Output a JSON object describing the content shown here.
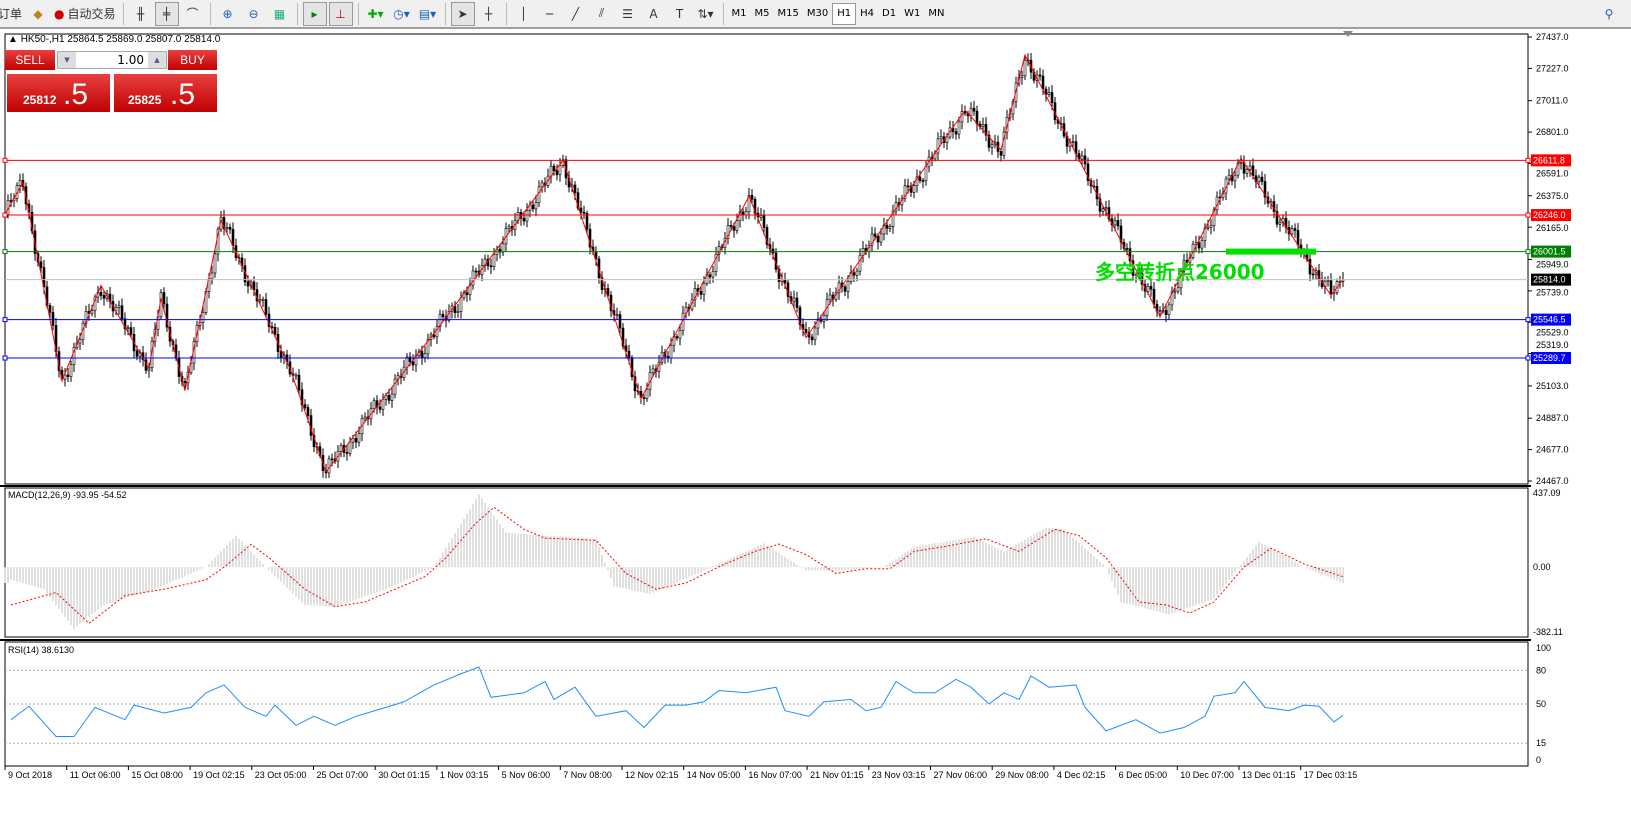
{
  "toolbar": {
    "order_label": "订单",
    "autotrade_label": "自动交易",
    "timeframes": [
      "M1",
      "M5",
      "M15",
      "M30",
      "H1",
      "H4",
      "D1",
      "W1",
      "MN"
    ],
    "active_timeframe": "H1",
    "icons": [
      "bar-chart-icon",
      "candlestick-icon",
      "line-chart-icon",
      "zoom-in-icon",
      "zoom-out-icon",
      "tile-windows-icon",
      "autoscroll-icon",
      "chart-shift-icon",
      "new-indicator-icon",
      "periods-icon",
      "templates-icon",
      "cursor-icon",
      "crosshair-icon",
      "vertical-line-icon",
      "horizontal-line-icon",
      "trendline-icon",
      "equidistant-channel-icon",
      "fibonacci-icon",
      "text-icon",
      "text-label-icon",
      "arrows-icon"
    ]
  },
  "symbol_info": "HK50-,H1  25864.5 25869.0 25807.0 25814.0",
  "trade_panel": {
    "sell_label": "SELL",
    "buy_label": "BUY",
    "lot": "1.00",
    "sell_big": "25812",
    "sell_small": ".5",
    "buy_big": "25825",
    "buy_small": ".5"
  },
  "annotation": "多空转折点26000",
  "colors": {
    "up": "#000000",
    "zigzag": "#ff0000",
    "macd_hist": "#c0c0c0",
    "macd_signal": "#ff0000",
    "rsi": "#1e90ff",
    "annotation": "#00e000"
  },
  "chart_data": [
    {
      "type": "candlestick",
      "symbol": "HK50-",
      "timeframe": "H1",
      "ylim": [
        24467,
        27437
      ],
      "y_ticks": [
        "27437.0",
        "27227.0",
        "27011.0",
        "26801.0",
        "26591.0",
        "26375.0",
        "26165.0",
        "25949.0",
        "25739.0",
        "25529.0",
        "25319.0",
        "25103.0",
        "24887.0",
        "24677.0",
        "24467.0"
      ],
      "x_labels": [
        "9 Oct 2018",
        "11 Oct 06:00",
        "15 Oct 08:00",
        "19 Oct 02:15",
        "23 Oct 05:00",
        "25 Oct 07:00",
        "30 Oct 01:15",
        "1 Nov 03:15",
        "5 Nov 06:00",
        "7 Nov 08:00",
        "12 Nov 02:15",
        "14 Nov 05:00",
        "16 Nov 07:00",
        "21 Nov 01:15",
        "23 Nov 03:15",
        "27 Nov 06:00",
        "29 Nov 08:00",
        "4 Dec 02:15",
        "6 Dec 05:00",
        "10 Dec 07:00",
        "13 Dec 01:15",
        "17 Dec 03:15"
      ],
      "last_price": "25814.0",
      "hlines": [
        {
          "price": "26611.8",
          "color": "#ff0000"
        },
        {
          "price": "26246.0",
          "color": "#ff0000"
        },
        {
          "price": "26001.5",
          "color": "#008000"
        },
        {
          "price": "25546.5",
          "color": "#0000ff"
        },
        {
          "price": "25289.7",
          "color": "#0000ff"
        }
      ],
      "zigzag": [
        [
          0,
          26250
        ],
        [
          6,
          26465
        ],
        [
          19,
          25138
        ],
        [
          32,
          25775
        ],
        [
          48,
          25219
        ],
        [
          52,
          25688
        ],
        [
          60,
          25071
        ],
        [
          72,
          26210
        ],
        [
          95,
          25219
        ],
        [
          107,
          24528
        ],
        [
          145,
          25507
        ],
        [
          186,
          26613
        ],
        [
          212,
          25018
        ],
        [
          248,
          26371
        ],
        [
          267,
          25426
        ],
        [
          320,
          26948
        ],
        [
          332,
          26680
        ],
        [
          340,
          27316
        ],
        [
          365,
          26345
        ],
        [
          385,
          25567
        ],
        [
          412,
          26626
        ],
        [
          442,
          25708
        ],
        [
          446,
          25814
        ]
      ],
      "highlight_level": 26001.5
    },
    {
      "type": "bar+line",
      "name": "MACD(12,26,9) -93.95 -54.52",
      "ylim": [
        -382.11,
        437.09
      ],
      "y_ticks": [
        "437.09",
        "0.00",
        "-382.11"
      ],
      "macd": [
        [
          2,
          -74
        ],
        [
          13,
          -130
        ],
        [
          23,
          -363
        ],
        [
          33,
          -223
        ],
        [
          50,
          -130
        ],
        [
          67,
          0
        ],
        [
          77,
          186
        ],
        [
          87,
          0
        ],
        [
          100,
          -223
        ],
        [
          110,
          -233
        ],
        [
          127,
          -130
        ],
        [
          143,
          0
        ],
        [
          158,
          428
        ],
        [
          167,
          205
        ],
        [
          180,
          186
        ],
        [
          197,
          167
        ],
        [
          203,
          -112
        ],
        [
          215,
          -158
        ],
        [
          233,
          -19
        ],
        [
          253,
          140
        ],
        [
          267,
          -19
        ],
        [
          277,
          -19
        ],
        [
          293,
          0
        ],
        [
          303,
          121
        ],
        [
          323,
          177
        ],
        [
          333,
          93
        ],
        [
          347,
          232
        ],
        [
          353,
          223
        ],
        [
          367,
          0
        ],
        [
          372,
          -205
        ],
        [
          388,
          -279
        ],
        [
          403,
          -186
        ],
        [
          418,
          149
        ],
        [
          433,
          0
        ],
        [
          446,
          -93
        ]
      ],
      "signal": [
        [
          2,
          -223
        ],
        [
          17,
          -149
        ],
        [
          28,
          -331
        ],
        [
          40,
          -167
        ],
        [
          53,
          -130
        ],
        [
          67,
          -74
        ],
        [
          73,
          0
        ],
        [
          82,
          134
        ],
        [
          88,
          56
        ],
        [
          100,
          -130
        ],
        [
          110,
          -233
        ],
        [
          120,
          -205
        ],
        [
          130,
          -130
        ],
        [
          140,
          -56
        ],
        [
          147,
          56
        ],
        [
          157,
          260
        ],
        [
          163,
          353
        ],
        [
          173,
          223
        ],
        [
          180,
          171
        ],
        [
          197,
          158
        ],
        [
          207,
          -37
        ],
        [
          217,
          -130
        ],
        [
          227,
          -93
        ],
        [
          240,
          19
        ],
        [
          250,
          93
        ],
        [
          258,
          136
        ],
        [
          267,
          74
        ],
        [
          277,
          -37
        ],
        [
          287,
          -9
        ],
        [
          295,
          -9
        ],
        [
          303,
          93
        ],
        [
          313,
          121
        ],
        [
          327,
          167
        ],
        [
          338,
          93
        ],
        [
          350,
          223
        ],
        [
          358,
          186
        ],
        [
          367,
          56
        ],
        [
          378,
          -205
        ],
        [
          387,
          -223
        ],
        [
          395,
          -270
        ],
        [
          403,
          -205
        ],
        [
          413,
          0
        ],
        [
          422,
          112
        ],
        [
          433,
          19
        ],
        [
          446,
          -56
        ]
      ]
    },
    {
      "type": "line",
      "name": "RSI(14) 38.6130",
      "ylim": [
        0,
        100
      ],
      "y_ticks": [
        "100",
        "80",
        "50",
        "15",
        "0"
      ],
      "levels": [
        80,
        50,
        15
      ],
      "values": [
        [
          2,
          36
        ],
        [
          8,
          48
        ],
        [
          17,
          21
        ],
        [
          23,
          21
        ],
        [
          30,
          47
        ],
        [
          40,
          36
        ],
        [
          43,
          49
        ],
        [
          53,
          42
        ],
        [
          62,
          47
        ],
        [
          67,
          60
        ],
        [
          73,
          67
        ],
        [
          80,
          47
        ],
        [
          87,
          39
        ],
        [
          90,
          49
        ],
        [
          97,
          31
        ],
        [
          103,
          39
        ],
        [
          110,
          31
        ],
        [
          117,
          39
        ],
        [
          127,
          47
        ],
        [
          133,
          52
        ],
        [
          143,
          67
        ],
        [
          152,
          77
        ],
        [
          158,
          83
        ],
        [
          162,
          56
        ],
        [
          173,
          60
        ],
        [
          180,
          70
        ],
        [
          183,
          54
        ],
        [
          190,
          65
        ],
        [
          197,
          39
        ],
        [
          207,
          44
        ],
        [
          213,
          29
        ],
        [
          220,
          49
        ],
        [
          227,
          49
        ],
        [
          233,
          52
        ],
        [
          238,
          62
        ],
        [
          247,
          60
        ],
        [
          257,
          65
        ],
        [
          260,
          44
        ],
        [
          268,
          39
        ],
        [
          273,
          52
        ],
        [
          282,
          54
        ],
        [
          287,
          44
        ],
        [
          292,
          47
        ],
        [
          297,
          70
        ],
        [
          303,
          60
        ],
        [
          310,
          60
        ],
        [
          317,
          72
        ],
        [
          322,
          65
        ],
        [
          328,
          50
        ],
        [
          333,
          60
        ],
        [
          338,
          54
        ],
        [
          342,
          75
        ],
        [
          348,
          65
        ],
        [
          357,
          67
        ],
        [
          360,
          47
        ],
        [
          367,
          26
        ],
        [
          377,
          36
        ],
        [
          385,
          24
        ],
        [
          393,
          29
        ],
        [
          400,
          39
        ],
        [
          403,
          57
        ],
        [
          410,
          60
        ],
        [
          413,
          70
        ],
        [
          420,
          47
        ],
        [
          428,
          44
        ],
        [
          433,
          49
        ],
        [
          438,
          48
        ],
        [
          443,
          34
        ],
        [
          446,
          40
        ]
      ]
    }
  ]
}
